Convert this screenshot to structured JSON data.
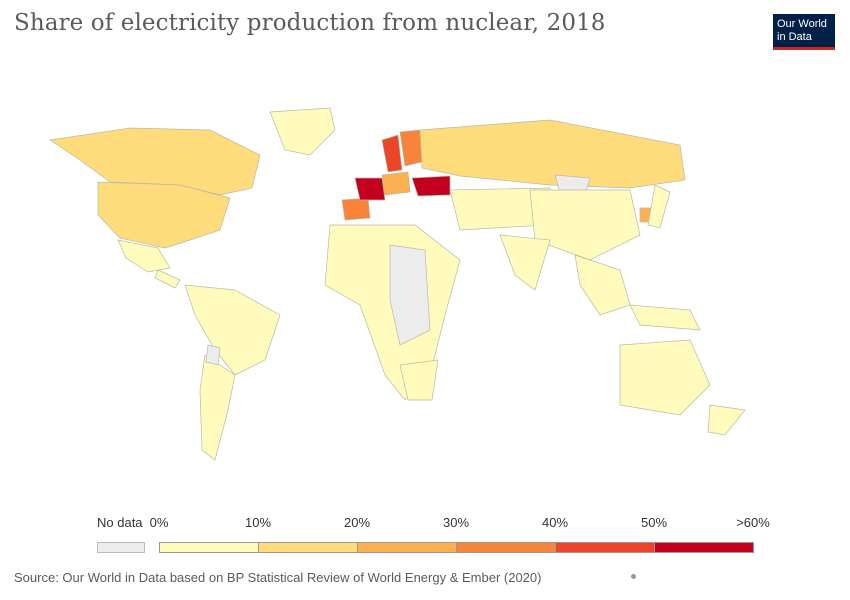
{
  "title": "Share of electricity production from nuclear, 2018",
  "logo_text": "Our World\nin Data",
  "source": "Source: Our World in Data based on BP Statistical Review of World Energy & Ember (2020)",
  "legend": {
    "no_data_label": "No data",
    "tick_labels": [
      "0%",
      "10%",
      "20%",
      "30%",
      "40%",
      "50%",
      ">60%"
    ],
    "bin_colors": [
      "#fffbbd",
      "#fedc7b",
      "#fdb04f",
      "#f8833b",
      "#ec4427",
      "#c3001e"
    ],
    "no_data_color": "#ececec"
  },
  "map": {
    "countries": [
      {
        "name": "Canada",
        "bin": 1
      },
      {
        "name": "United States",
        "bin": 1
      },
      {
        "name": "Greenland",
        "bin": 0
      },
      {
        "name": "Mexico",
        "bin": 0
      },
      {
        "name": "Brazil",
        "bin": 0
      },
      {
        "name": "Argentina",
        "bin": 0
      },
      {
        "name": "Russia",
        "bin": 1
      },
      {
        "name": "France",
        "bin": 5
      },
      {
        "name": "Ukraine",
        "bin": 5
      },
      {
        "name": "Sweden",
        "bin": 4
      },
      {
        "name": "Finland",
        "bin": 3
      },
      {
        "name": "Spain",
        "bin": 3
      },
      {
        "name": "South Korea",
        "bin": 2
      },
      {
        "name": "China",
        "bin": 0
      },
      {
        "name": "India",
        "bin": 0
      },
      {
        "name": "Australia",
        "bin": 0
      },
      {
        "name": "South Africa",
        "bin": 0
      }
    ]
  }
}
